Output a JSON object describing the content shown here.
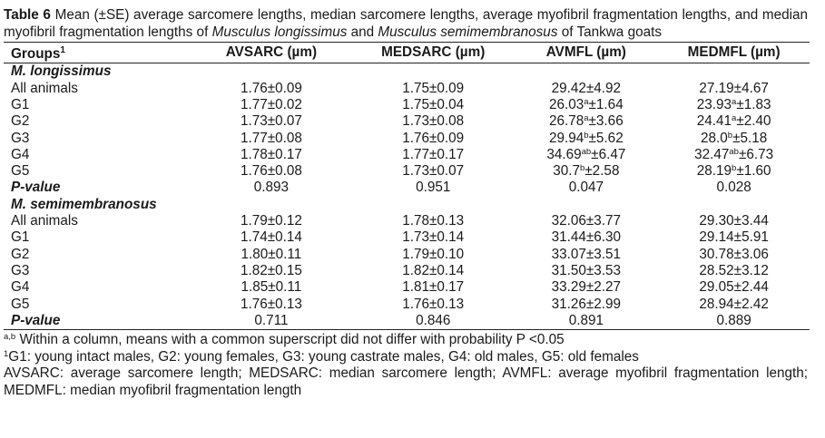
{
  "caption": {
    "label": "Table 6",
    "text_1": " Mean (±SE) average sarcomere lengths, median sarcomere lengths, average myofibril fragmentation lengths, and median myofibril fragmentation lengths of ",
    "species_1": "Musculus longissimus",
    "and_word": " and ",
    "species_2": "Musculus semimembranosus",
    "text_2": " of Tankwa goats"
  },
  "headers": {
    "groups": "Groups",
    "groups_sup": "1",
    "col1": "AVSARC (µm)",
    "col2": "MEDSARC (µm)",
    "col3": "AVMFL (µm)",
    "col4": "MEDMFL (µm)"
  },
  "sections": [
    {
      "title": "M. longissimus",
      "rows": [
        {
          "group": "All animals",
          "c1": "1.76±0.09",
          "c2": "1.75±0.09",
          "c3a": "29.42",
          "c3s": "",
          "c3b": "±4.92",
          "c4a": "27.19",
          "c4s": "",
          "c4b": "±4.67"
        },
        {
          "group": "G1",
          "c1": "1.77±0.02",
          "c2": "1.75±0.04",
          "c3a": "26.03",
          "c3s": "a",
          "c3b": "±1.64",
          "c4a": "23.93",
          "c4s": "a",
          "c4b": "±1.83"
        },
        {
          "group": "G2",
          "c1": "1.73±0.07",
          "c2": "1.73±0.08",
          "c3a": "26.78",
          "c3s": "a",
          "c3b": "±3.66",
          "c4a": "24.41",
          "c4s": "a",
          "c4b": "±2.40"
        },
        {
          "group": "G3",
          "c1": "1.77±0.08",
          "c2": "1.76±0.09",
          "c3a": "29.94",
          "c3s": "b",
          "c3b": "±5.62",
          "c4a": "28.0",
          "c4s": "b",
          "c4b": "±5.18"
        },
        {
          "group": "G4",
          "c1": "1.78±0.17",
          "c2": "1.77±0.17",
          "c3a": "34.69",
          "c3s": "ab",
          "c3b": "±6.47",
          "c4a": "32.47",
          "c4s": "ab",
          "c4b": "±6.73"
        },
        {
          "group": "G5",
          "c1": "1.76±0.08",
          "c2": "1.73±0.07",
          "c3a": "30.7",
          "c3s": "b",
          "c3b": "±2.58",
          "c4a": "28.19",
          "c4s": "b",
          "c4b": "±1.60"
        }
      ],
      "pvalue": {
        "label": "P-value",
        "c1": "0.893",
        "c2": "0.951",
        "c3": "0.047",
        "c4": "0.028"
      }
    },
    {
      "title": "M. semimembranosus",
      "rows": [
        {
          "group": "All animals",
          "c1": "1.79±0.12",
          "c2": "1.78±0.13",
          "c3a": "32.06",
          "c3s": "",
          "c3b": "±3.77",
          "c4a": "29.30",
          "c4s": "",
          "c4b": "±3.44"
        },
        {
          "group": "G1",
          "c1": "1.74±0.14",
          "c2": "1.73±0.14",
          "c3a": "31.44",
          "c3s": "",
          "c3b": "±6.30",
          "c4a": "29.14",
          "c4s": "",
          "c4b": "±5.91"
        },
        {
          "group": "G2",
          "c1": "1.80±0.11",
          "c2": "1.79±0.10",
          "c3a": "33.07",
          "c3s": "",
          "c3b": "±3.51",
          "c4a": "30.78",
          "c4s": "",
          "c4b": "±3.06"
        },
        {
          "group": "G3",
          "c1": "1.82±0.15",
          "c2": "1.82±0.14",
          "c3a": "31.50",
          "c3s": "",
          "c3b": "±3.53",
          "c4a": "28.52",
          "c4s": "",
          "c4b": "±3.12"
        },
        {
          "group": "G4",
          "c1": "1.85±0.11",
          "c2": "1.81±0.17",
          "c3a": "33.29",
          "c3s": "",
          "c3b": "±2.27",
          "c4a": "29.05",
          "c4s": "",
          "c4b": "±2.44"
        },
        {
          "group": "G5",
          "c1": "1.76±0.13",
          "c2": "1.76±0.13",
          "c3a": "31.26",
          "c3s": "",
          "c3b": "±2.99",
          "c4a": "28.94",
          "c4s": "",
          "c4b": "±2.42"
        }
      ],
      "pvalue": {
        "label": "P-value",
        "c1": "0.711",
        "c2": "0.846",
        "c3": "0.891",
        "c4": "0.889"
      }
    }
  ],
  "notes": {
    "n1_sup": "a,b",
    "n1_text": " Within a column, means with a common superscript did not differ with probability P <0.05",
    "n2_sup": "1",
    "n2_text": "G1: young intact males, G2: young females, G3: young castrate males, G4: old males, G5: old females",
    "n3_text": "AVSARC: average sarcomere length; MEDSARC: median sarcomere length; AVMFL: average myofibril fragmentation length; MEDMFL: median myofibril fragmentation length"
  }
}
